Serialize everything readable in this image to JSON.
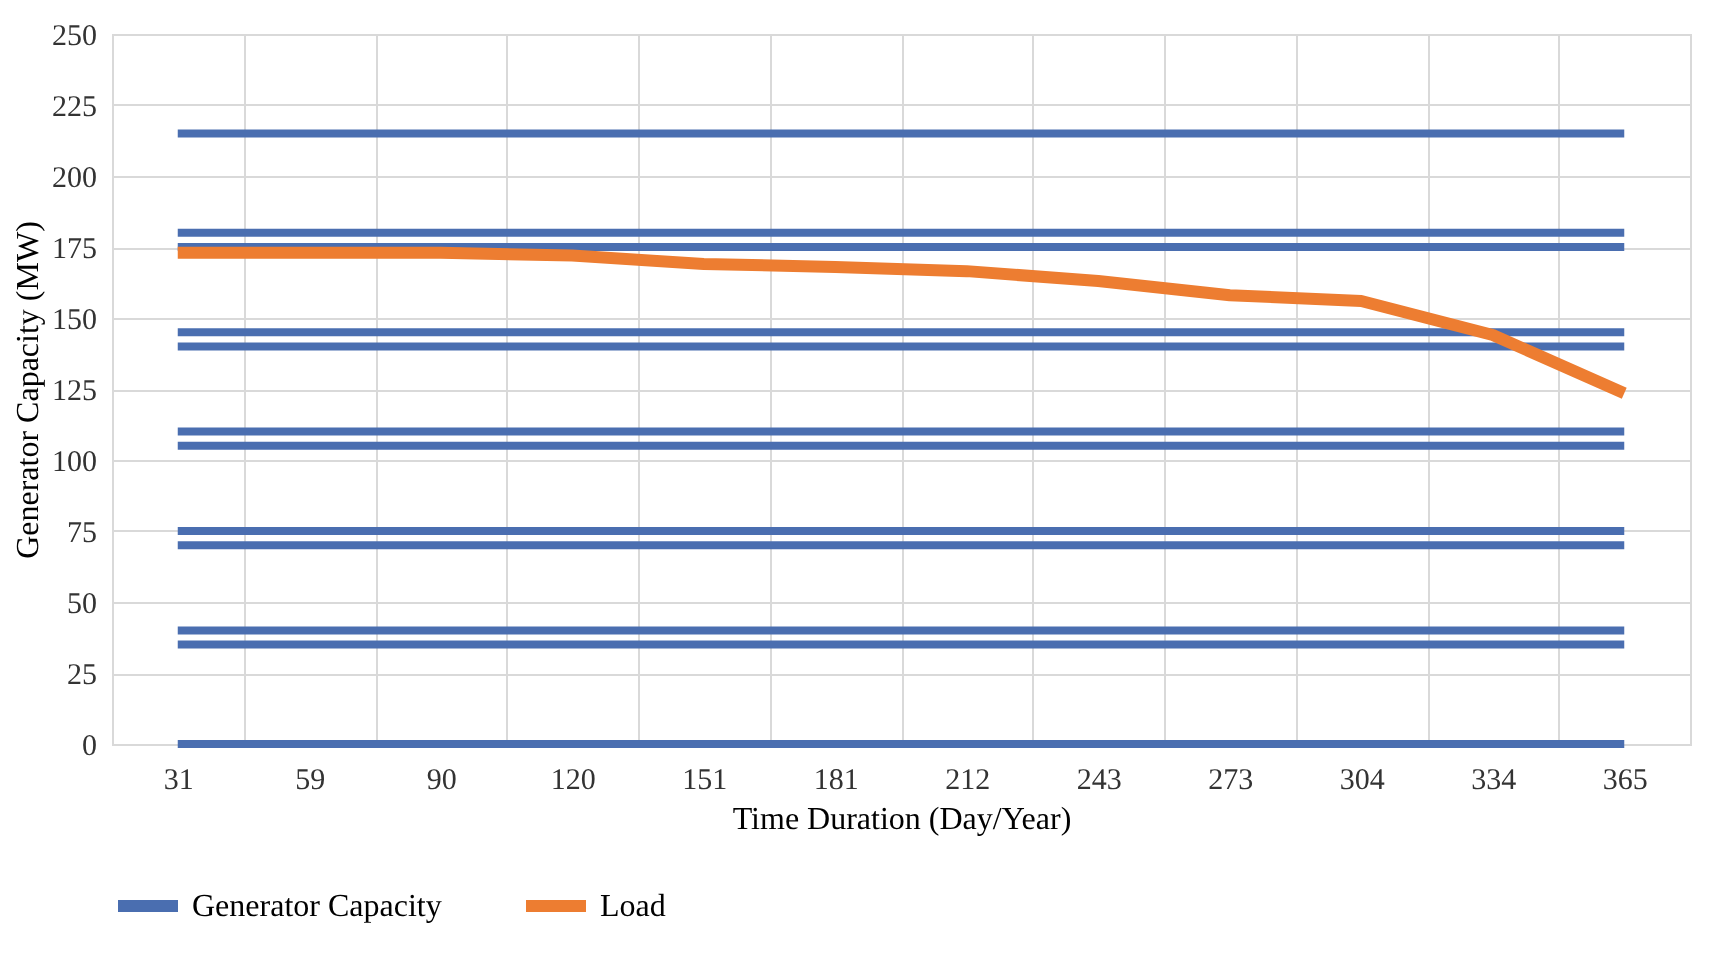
{
  "chart_data": {
    "type": "line",
    "xlabel": "Time Duration (Day/Year)",
    "ylabel": "Generator Capacity (MW)",
    "categories": [
      "31",
      "59",
      "90",
      "120",
      "151",
      "181",
      "212",
      "243",
      "273",
      "304",
      "334",
      "365"
    ],
    "ylim": [
      0,
      250
    ],
    "yticks": [
      0,
      25,
      50,
      75,
      100,
      125,
      150,
      175,
      200,
      225,
      250
    ],
    "grid": true,
    "legend": "bottom",
    "marker": "none",
    "line_style": "solid",
    "series": [
      {
        "name": "Generator Capacity",
        "color": "#4a6eb0",
        "values": [
          0,
          0,
          0,
          0,
          0,
          0,
          0,
          0,
          0,
          0,
          0,
          0
        ]
      },
      {
        "color": "#4a6eb0",
        "values": [
          35,
          35,
          35,
          35,
          35,
          35,
          35,
          35,
          35,
          35,
          35,
          35
        ]
      },
      {
        "color": "#4a6eb0",
        "values": [
          40,
          40,
          40,
          40,
          40,
          40,
          40,
          40,
          40,
          40,
          40,
          40
        ]
      },
      {
        "color": "#4a6eb0",
        "values": [
          70,
          70,
          70,
          70,
          70,
          70,
          70,
          70,
          70,
          70,
          70,
          70
        ]
      },
      {
        "color": "#4a6eb0",
        "values": [
          75,
          75,
          75,
          75,
          75,
          75,
          75,
          75,
          75,
          75,
          75,
          75
        ]
      },
      {
        "color": "#4a6eb0",
        "values": [
          105,
          105,
          105,
          105,
          105,
          105,
          105,
          105,
          105,
          105,
          105,
          105
        ]
      },
      {
        "color": "#4a6eb0",
        "values": [
          110,
          110,
          110,
          110,
          110,
          110,
          110,
          110,
          110,
          110,
          110,
          110
        ]
      },
      {
        "color": "#4a6eb0",
        "values": [
          140,
          140,
          140,
          140,
          140,
          140,
          140,
          140,
          140,
          140,
          140,
          140
        ]
      },
      {
        "color": "#4a6eb0",
        "values": [
          145,
          145,
          145,
          145,
          145,
          145,
          145,
          145,
          145,
          145,
          145,
          145
        ]
      },
      {
        "color": "#4a6eb0",
        "values": [
          175,
          175,
          175,
          175,
          175,
          175,
          175,
          175,
          175,
          175,
          175,
          175
        ]
      },
      {
        "color": "#4a6eb0",
        "values": [
          180,
          180,
          180,
          180,
          180,
          180,
          180,
          180,
          180,
          180,
          180,
          180
        ]
      },
      {
        "color": "#4a6eb0",
        "values": [
          215,
          215,
          215,
          215,
          215,
          215,
          215,
          215,
          215,
          215,
          215,
          215
        ]
      },
      {
        "name": "Load",
        "color": "#ed7d31",
        "values": [
          173,
          173,
          173,
          172,
          169,
          168,
          166.5,
          163,
          158,
          156,
          144,
          123.5
        ]
      }
    ]
  }
}
